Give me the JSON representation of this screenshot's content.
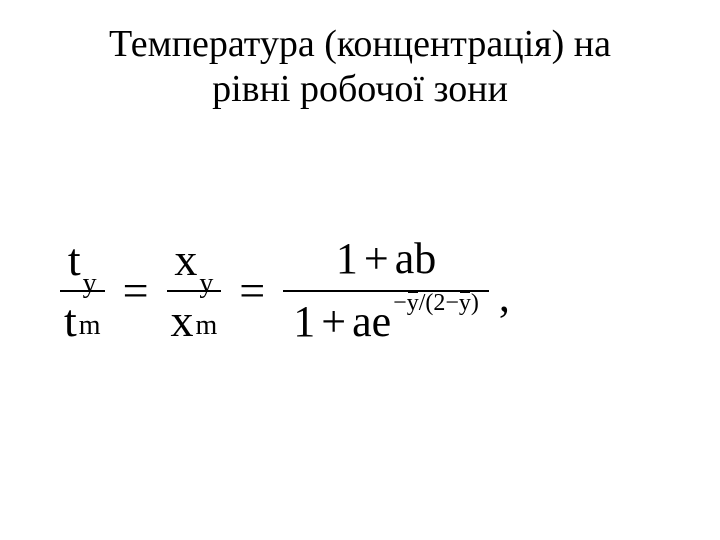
{
  "title_line1": "Температура (концентрація) на",
  "title_line2": "рівні робочої зони",
  "lhs1": {
    "num_base": "t",
    "num_sub": "y",
    "den_base": "t",
    "den_sub": "m"
  },
  "eq": "=",
  "lhs2": {
    "num_base": "x",
    "num_sub": "y",
    "den_base": "x",
    "den_sub": "m"
  },
  "rhs": {
    "num_1": "1",
    "num_plus": "+",
    "num_ab": "ab",
    "den_1": "1",
    "den_plus": "+",
    "den_ae": "ae",
    "exp_minus": "−",
    "exp_y1": "y",
    "exp_slash": "/",
    "exp_lpar": "(",
    "exp_2": "2",
    "exp_minus2": "−",
    "exp_y2": "y",
    "exp_rpar": ")"
  },
  "comma": ","
}
